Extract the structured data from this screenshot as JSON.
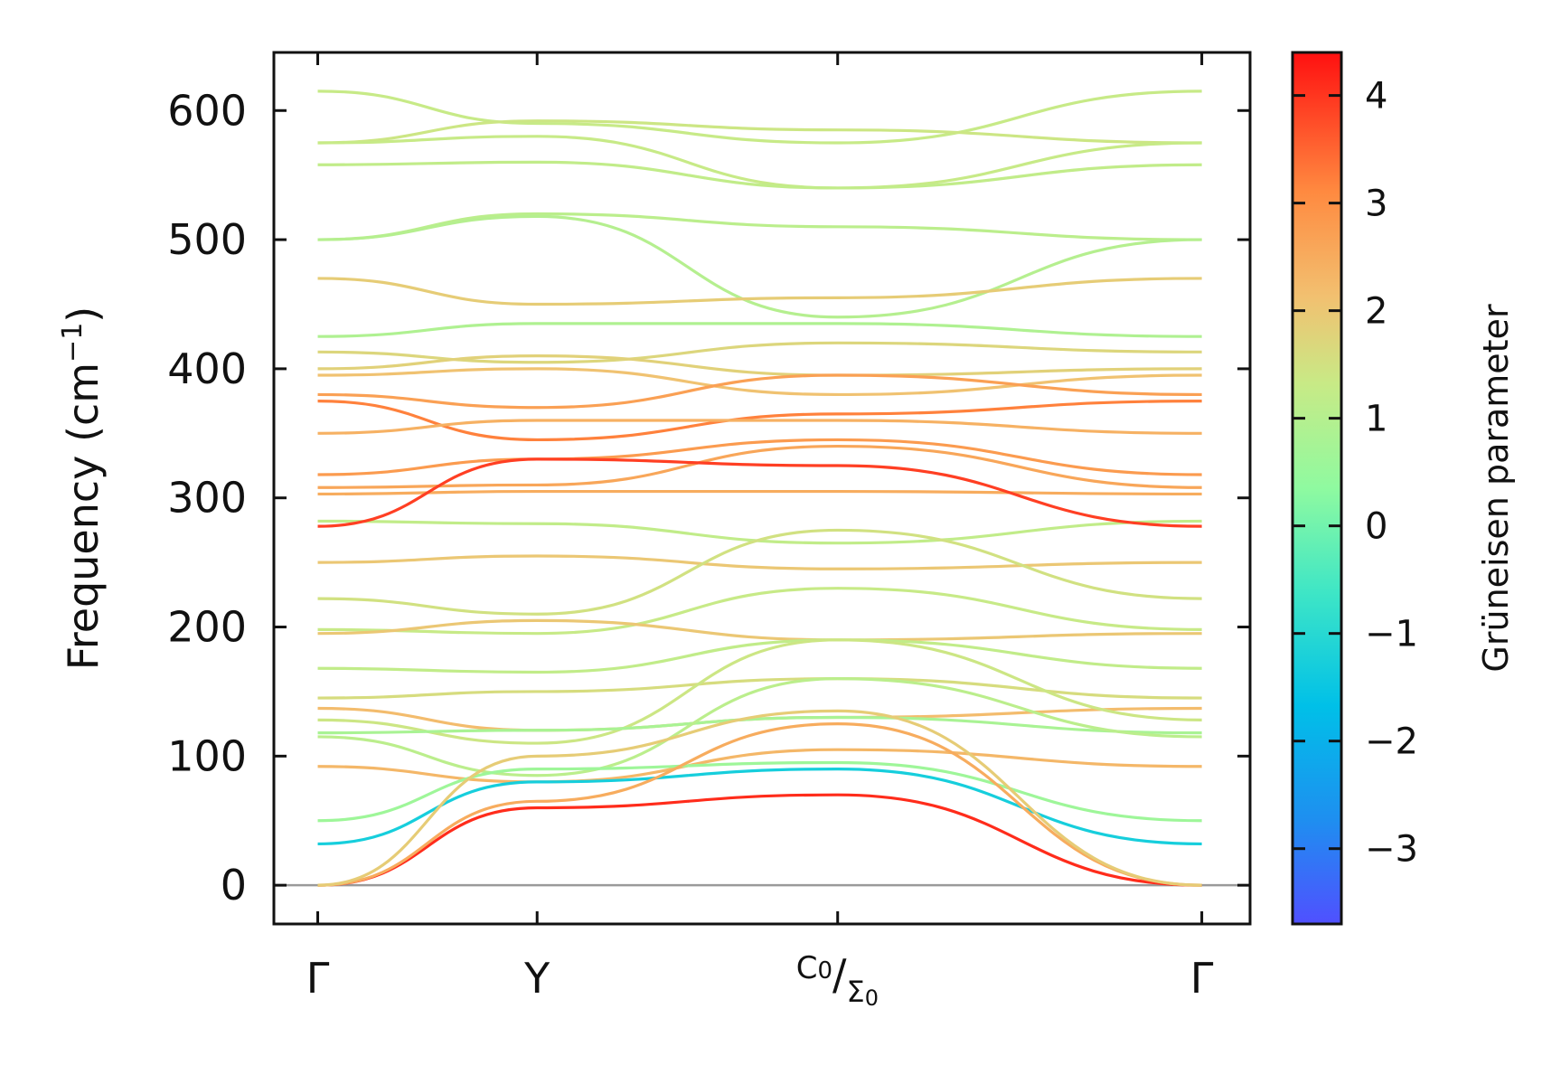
{
  "chart_data": {
    "type": "line",
    "title": "",
    "ylabel": "Frequency (cm",
    "ylabel_unit_exp": "−1",
    "ylabel_close": ")",
    "ylim": [
      -30,
      645
    ],
    "yticks": [
      0,
      100,
      200,
      300,
      400,
      500,
      600
    ],
    "xlim": [
      -0.2,
      4.25
    ],
    "xticks": [
      {
        "x": 0,
        "label": "Γ"
      },
      {
        "x": 1,
        "label": "Y"
      },
      {
        "x": 2.37,
        "label": "C",
        "sub": "0",
        "label2": "Σ",
        "sub2": "0"
      },
      {
        "x": 4.03,
        "label": "Γ"
      }
    ],
    "colorbar": {
      "label": "Grüneisen parameter",
      "range": [
        -3.7,
        4.4
      ],
      "ticks": [
        4,
        3,
        2,
        1,
        0,
        -1,
        -2,
        -3
      ],
      "tick_labels": [
        "4",
        "3",
        "2",
        "1",
        "0",
        "−1",
        "−2",
        "−3"
      ],
      "colormap": "rainbow"
    },
    "zero_line": 0,
    "x": [
      0,
      1,
      2.37,
      4.03
    ],
    "series": [
      {
        "values": [
          615,
          590,
          575,
          615
        ],
        "g": 1.3
      },
      {
        "values": [
          575,
          592,
          585,
          575
        ],
        "g": 1.4
      },
      {
        "values": [
          575,
          580,
          540,
          575
        ],
        "g": 1.3
      },
      {
        "values": [
          558,
          560,
          540,
          558
        ],
        "g": 1.2
      },
      {
        "values": [
          500,
          520,
          510,
          500
        ],
        "g": 1.1
      },
      {
        "values": [
          500,
          518,
          440,
          500
        ],
        "g": 1.0
      },
      {
        "values": [
          470,
          450,
          455,
          470
        ],
        "g": 1.9
      },
      {
        "values": [
          425,
          435,
          435,
          425
        ],
        "g": 0.9
      },
      {
        "values": [
          413,
          405,
          420,
          413
        ],
        "g": 1.7
      },
      {
        "values": [
          400,
          410,
          395,
          400
        ],
        "g": 1.8
      },
      {
        "values": [
          395,
          400,
          380,
          395
        ],
        "g": 2.1
      },
      {
        "values": [
          380,
          370,
          395,
          380
        ],
        "g": 2.7
      },
      {
        "values": [
          375,
          345,
          365,
          375
        ],
        "g": 3.2
      },
      {
        "values": [
          350,
          360,
          360,
          350
        ],
        "g": 2.4
      },
      {
        "values": [
          318,
          330,
          345,
          318
        ],
        "g": 2.8
      },
      {
        "values": [
          308,
          310,
          340,
          308
        ],
        "g": 2.6
      },
      {
        "values": [
          303,
          305,
          305,
          303
        ],
        "g": 2.5
      },
      {
        "values": [
          282,
          280,
          265,
          282
        ],
        "g": 1.2
      },
      {
        "values": [
          278,
          330,
          325,
          278
        ],
        "g": 3.9
      },
      {
        "values": [
          250,
          255,
          245,
          250
        ],
        "g": 2.0
      },
      {
        "values": [
          222,
          210,
          275,
          222
        ],
        "g": 1.5
      },
      {
        "values": [
          198,
          195,
          230,
          198
        ],
        "g": 1.3
      },
      {
        "values": [
          195,
          205,
          190,
          195
        ],
        "g": 2.0
      },
      {
        "values": [
          168,
          165,
          190,
          168
        ],
        "g": 1.2
      },
      {
        "values": [
          145,
          150,
          160,
          145
        ],
        "g": 1.6
      },
      {
        "values": [
          137,
          120,
          130,
          137
        ],
        "g": 2.2
      },
      {
        "values": [
          128,
          110,
          190,
          128
        ],
        "g": 1.4
      },
      {
        "values": [
          118,
          120,
          130,
          118
        ],
        "g": 0.8
      },
      {
        "values": [
          115,
          85,
          160,
          115
        ],
        "g": 1.1
      },
      {
        "values": [
          92,
          80,
          105,
          92
        ],
        "g": 2.3
      },
      {
        "values": [
          50,
          90,
          95,
          50
        ],
        "g": 0.6
      },
      {
        "values": [
          32,
          80,
          90,
          32
        ],
        "g": -1.3
      },
      {
        "values": [
          0,
          60,
          70,
          0
        ],
        "g": 4.1
      },
      {
        "values": [
          0,
          65,
          125,
          0
        ],
        "g": 2.5
      },
      {
        "values": [
          0,
          100,
          135,
          0
        ],
        "g": 1.9
      }
    ]
  }
}
